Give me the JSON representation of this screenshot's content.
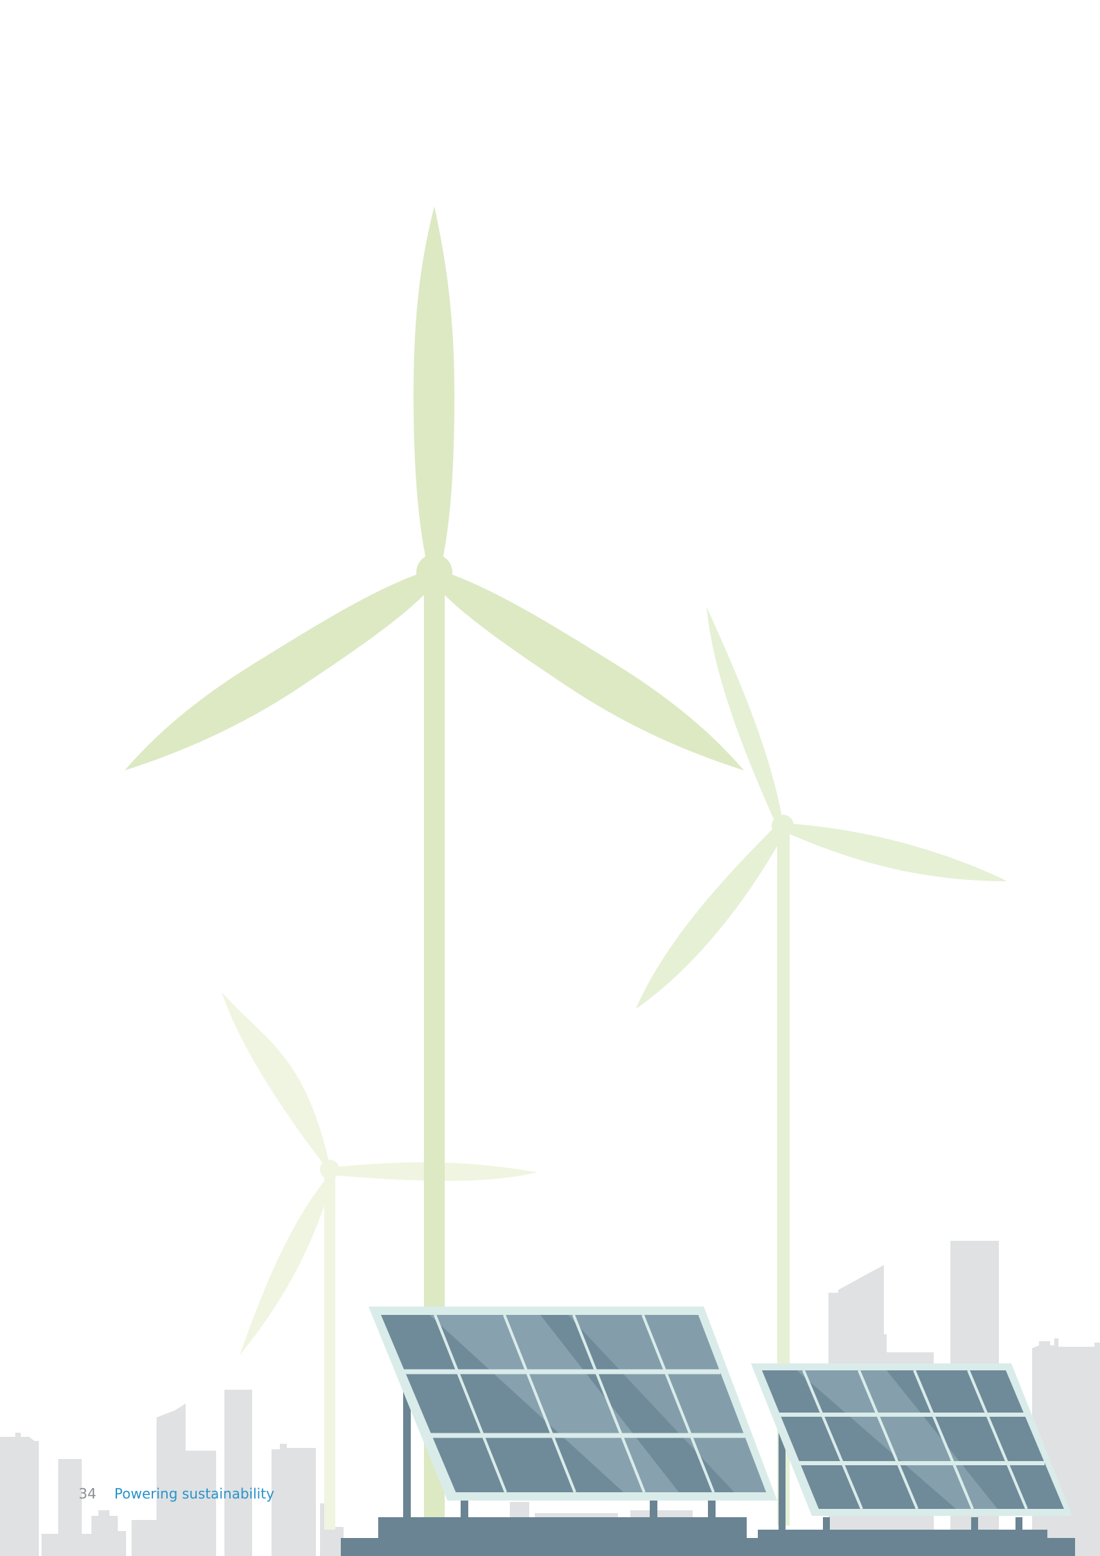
{
  "footer": {
    "page_number": "34",
    "section_title": "Powering sustainability"
  },
  "colors": {
    "turbine_large": "#dce9c3",
    "turbine_medium": "#e5f0d5",
    "turbine_small": "#eff5e0",
    "city_skyline": "#dfe1e3",
    "solar_frame": "#d9ecea",
    "solar_cell": "#6f8a99",
    "solar_glare": "#9cb5bf",
    "ground_base": "#6a8493",
    "page_number": "#8b8f93",
    "section_title": "#2a93c9"
  },
  "illustration": {
    "subjects": [
      "wind-turbine",
      "wind-turbine",
      "wind-turbine",
      "solar-panel",
      "solar-panel",
      "city-skyline"
    ]
  }
}
